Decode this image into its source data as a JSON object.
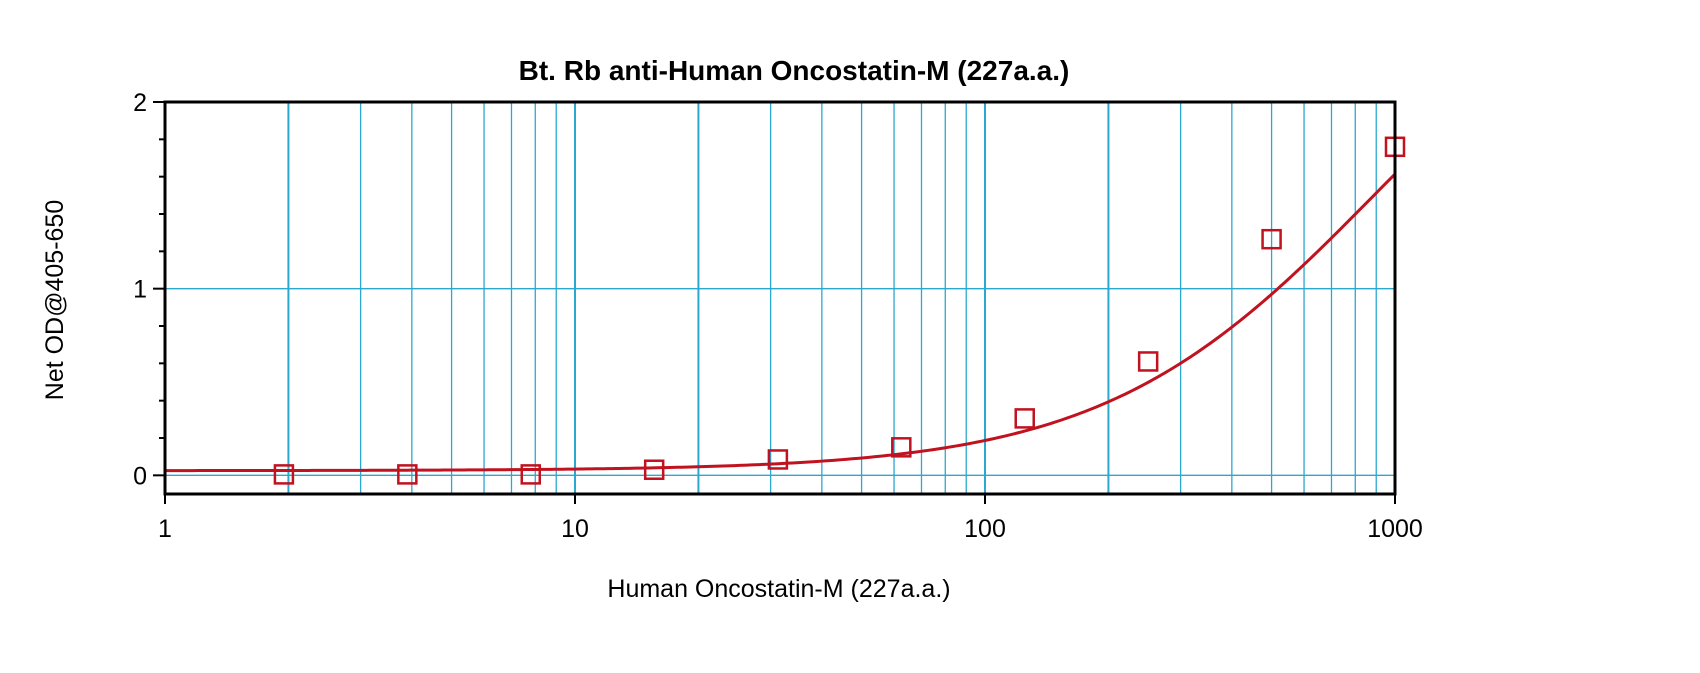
{
  "chart_data": {
    "type": "scatter",
    "title": "Bt. Rb anti-Human Oncostatin-M (227a.a.)",
    "xlabel": "Human Oncostatin-M (227a.a.)",
    "ylabel": "Net OD@405-650",
    "x_scale": "log",
    "xlim": [
      1,
      1000
    ],
    "ylim": [
      -0.1,
      2
    ],
    "x_ticks": [
      1,
      10,
      100,
      1000
    ],
    "x_tick_labels": [
      "1",
      "10",
      "100",
      "1000"
    ],
    "y_ticks": [
      0,
      1,
      2
    ],
    "y_tick_labels": [
      "0",
      "1",
      "2"
    ],
    "y_minor_ticks": [
      0.2,
      0.4,
      0.6,
      0.8,
      1.2,
      1.4,
      1.6,
      1.8
    ],
    "grid": true,
    "legend": "none",
    "series": [
      {
        "marker": "open-square",
        "points": [
          {
            "x": 1.95,
            "y": 0.005
          },
          {
            "x": 3.9,
            "y": 0.005
          },
          {
            "x": 7.8,
            "y": 0.005
          },
          {
            "x": 15.6,
            "y": 0.03
          },
          {
            "x": 31.25,
            "y": 0.085
          },
          {
            "x": 62.5,
            "y": 0.15
          },
          {
            "x": 125,
            "y": 0.305
          },
          {
            "x": 250,
            "y": 0.61
          },
          {
            "x": 500,
            "y": 1.265
          },
          {
            "x": 1000,
            "y": 1.76
          }
        ]
      }
    ],
    "fit_curve": {
      "type": "4pl",
      "bottom": 0.025,
      "top": 3.0,
      "ec50": 900,
      "hill": 1.3
    },
    "colors": {
      "series": "#c0121f",
      "grid": "#2aa8d0",
      "axis": "#000000"
    }
  }
}
